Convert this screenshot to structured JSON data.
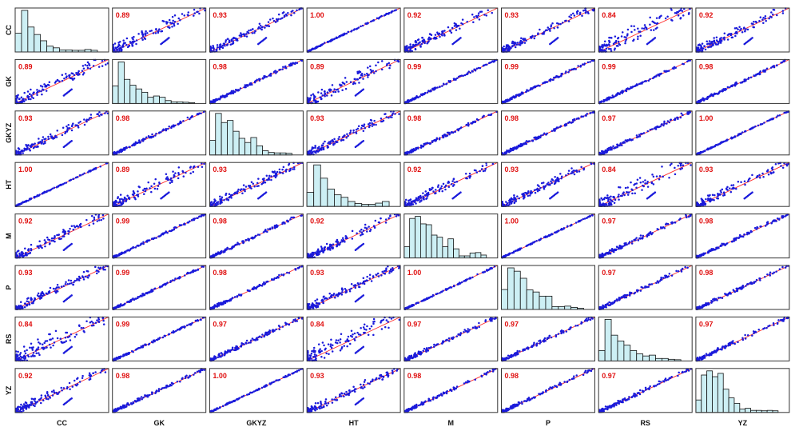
{
  "chart_data": {
    "type": "scatter",
    "chart_kind": "scatterplot-matrix",
    "variables": [
      "CC",
      "GK",
      "GKYZ",
      "HT",
      "M",
      "P",
      "RS",
      "YZ"
    ],
    "row_labels": [
      "CC",
      "GK",
      "GKYZ",
      "HT",
      "M",
      "P",
      "RS",
      "YZ"
    ],
    "column_labels": [
      "CC",
      "GK",
      "GKYZ",
      "HT",
      "M",
      "P",
      "RS",
      "YZ"
    ],
    "correlations": [
      [
        "",
        "0.89",
        "0.93",
        "1.00",
        "0.92",
        "0.93",
        "0.84",
        "0.92"
      ],
      [
        "0.89",
        "",
        "0.98",
        "0.89",
        "0.99",
        "0.99",
        "0.99",
        "0.98"
      ],
      [
        "0.93",
        "0.98",
        "",
        "0.93",
        "0.98",
        "0.98",
        "0.97",
        "1.00"
      ],
      [
        "1.00",
        "0.89",
        "0.93",
        "",
        "0.92",
        "0.93",
        "0.84",
        "0.93"
      ],
      [
        "0.92",
        "0.99",
        "0.98",
        "0.92",
        "",
        "1.00",
        "0.97",
        "0.98"
      ],
      [
        "0.93",
        "0.99",
        "0.98",
        "0.93",
        "1.00",
        "",
        "0.97",
        "0.98"
      ],
      [
        "0.84",
        "0.99",
        "0.97",
        "0.84",
        "0.97",
        "0.97",
        "",
        "0.97"
      ],
      [
        "0.92",
        "0.98",
        "1.00",
        "0.93",
        "0.98",
        "0.98",
        "0.97",
        ""
      ]
    ],
    "histograms": {
      "CC": [
        0.45,
        1.0,
        0.6,
        0.42,
        0.27,
        0.14,
        0.1,
        0.05,
        0.05,
        0.04,
        0.04,
        0.06,
        0.04
      ],
      "GK": [
        0.42,
        1.0,
        0.58,
        0.44,
        0.35,
        0.27,
        0.15,
        0.18,
        0.15,
        0.07,
        0.04,
        0.04,
        0.03,
        0.02
      ],
      "GKYZ": [
        0.35,
        1.0,
        0.78,
        0.83,
        0.57,
        0.4,
        0.3,
        0.42,
        0.22,
        0.1,
        0.06,
        0.05,
        0.05,
        0.04
      ],
      "HT": [
        0.34,
        1.0,
        0.68,
        0.42,
        0.28,
        0.22,
        0.12,
        0.07,
        0.05,
        0.05,
        0.08,
        0.12
      ],
      "M": [
        0.27,
        0.95,
        1.0,
        0.82,
        0.8,
        0.55,
        0.5,
        0.27,
        0.46,
        0.22,
        0.05,
        0.05,
        0.12,
        0.13,
        0.07
      ],
      "P": [
        0.48,
        1.0,
        0.92,
        0.75,
        0.47,
        0.42,
        0.32,
        0.32,
        0.07,
        0.07,
        0.08,
        0.05,
        0.03
      ],
      "RS": [
        0.25,
        1.0,
        0.62,
        0.48,
        0.38,
        0.25,
        0.17,
        0.12,
        0.14,
        0.06,
        0.06,
        0.04,
        0.03
      ],
      "YZ": [
        0.3,
        0.9,
        1.0,
        0.86,
        0.94,
        0.56,
        0.35,
        0.22,
        0.08,
        0.1,
        0.05,
        0.05,
        0.04,
        0.05,
        0.04
      ]
    },
    "series": [
      {
        "marker": "points",
        "color": "#1a1adb"
      },
      {
        "marker": "identity line y = x",
        "color": "#ff2a2a"
      }
    ],
    "colors": {
      "points": "#1a1adb",
      "identity_line": "#ff2a2a",
      "correlation_text": "#e01010",
      "histogram_fill": "#cdeff4",
      "histogram_edge": "#111111",
      "panel_border": "#333333"
    },
    "grid": false,
    "legend": "none"
  }
}
